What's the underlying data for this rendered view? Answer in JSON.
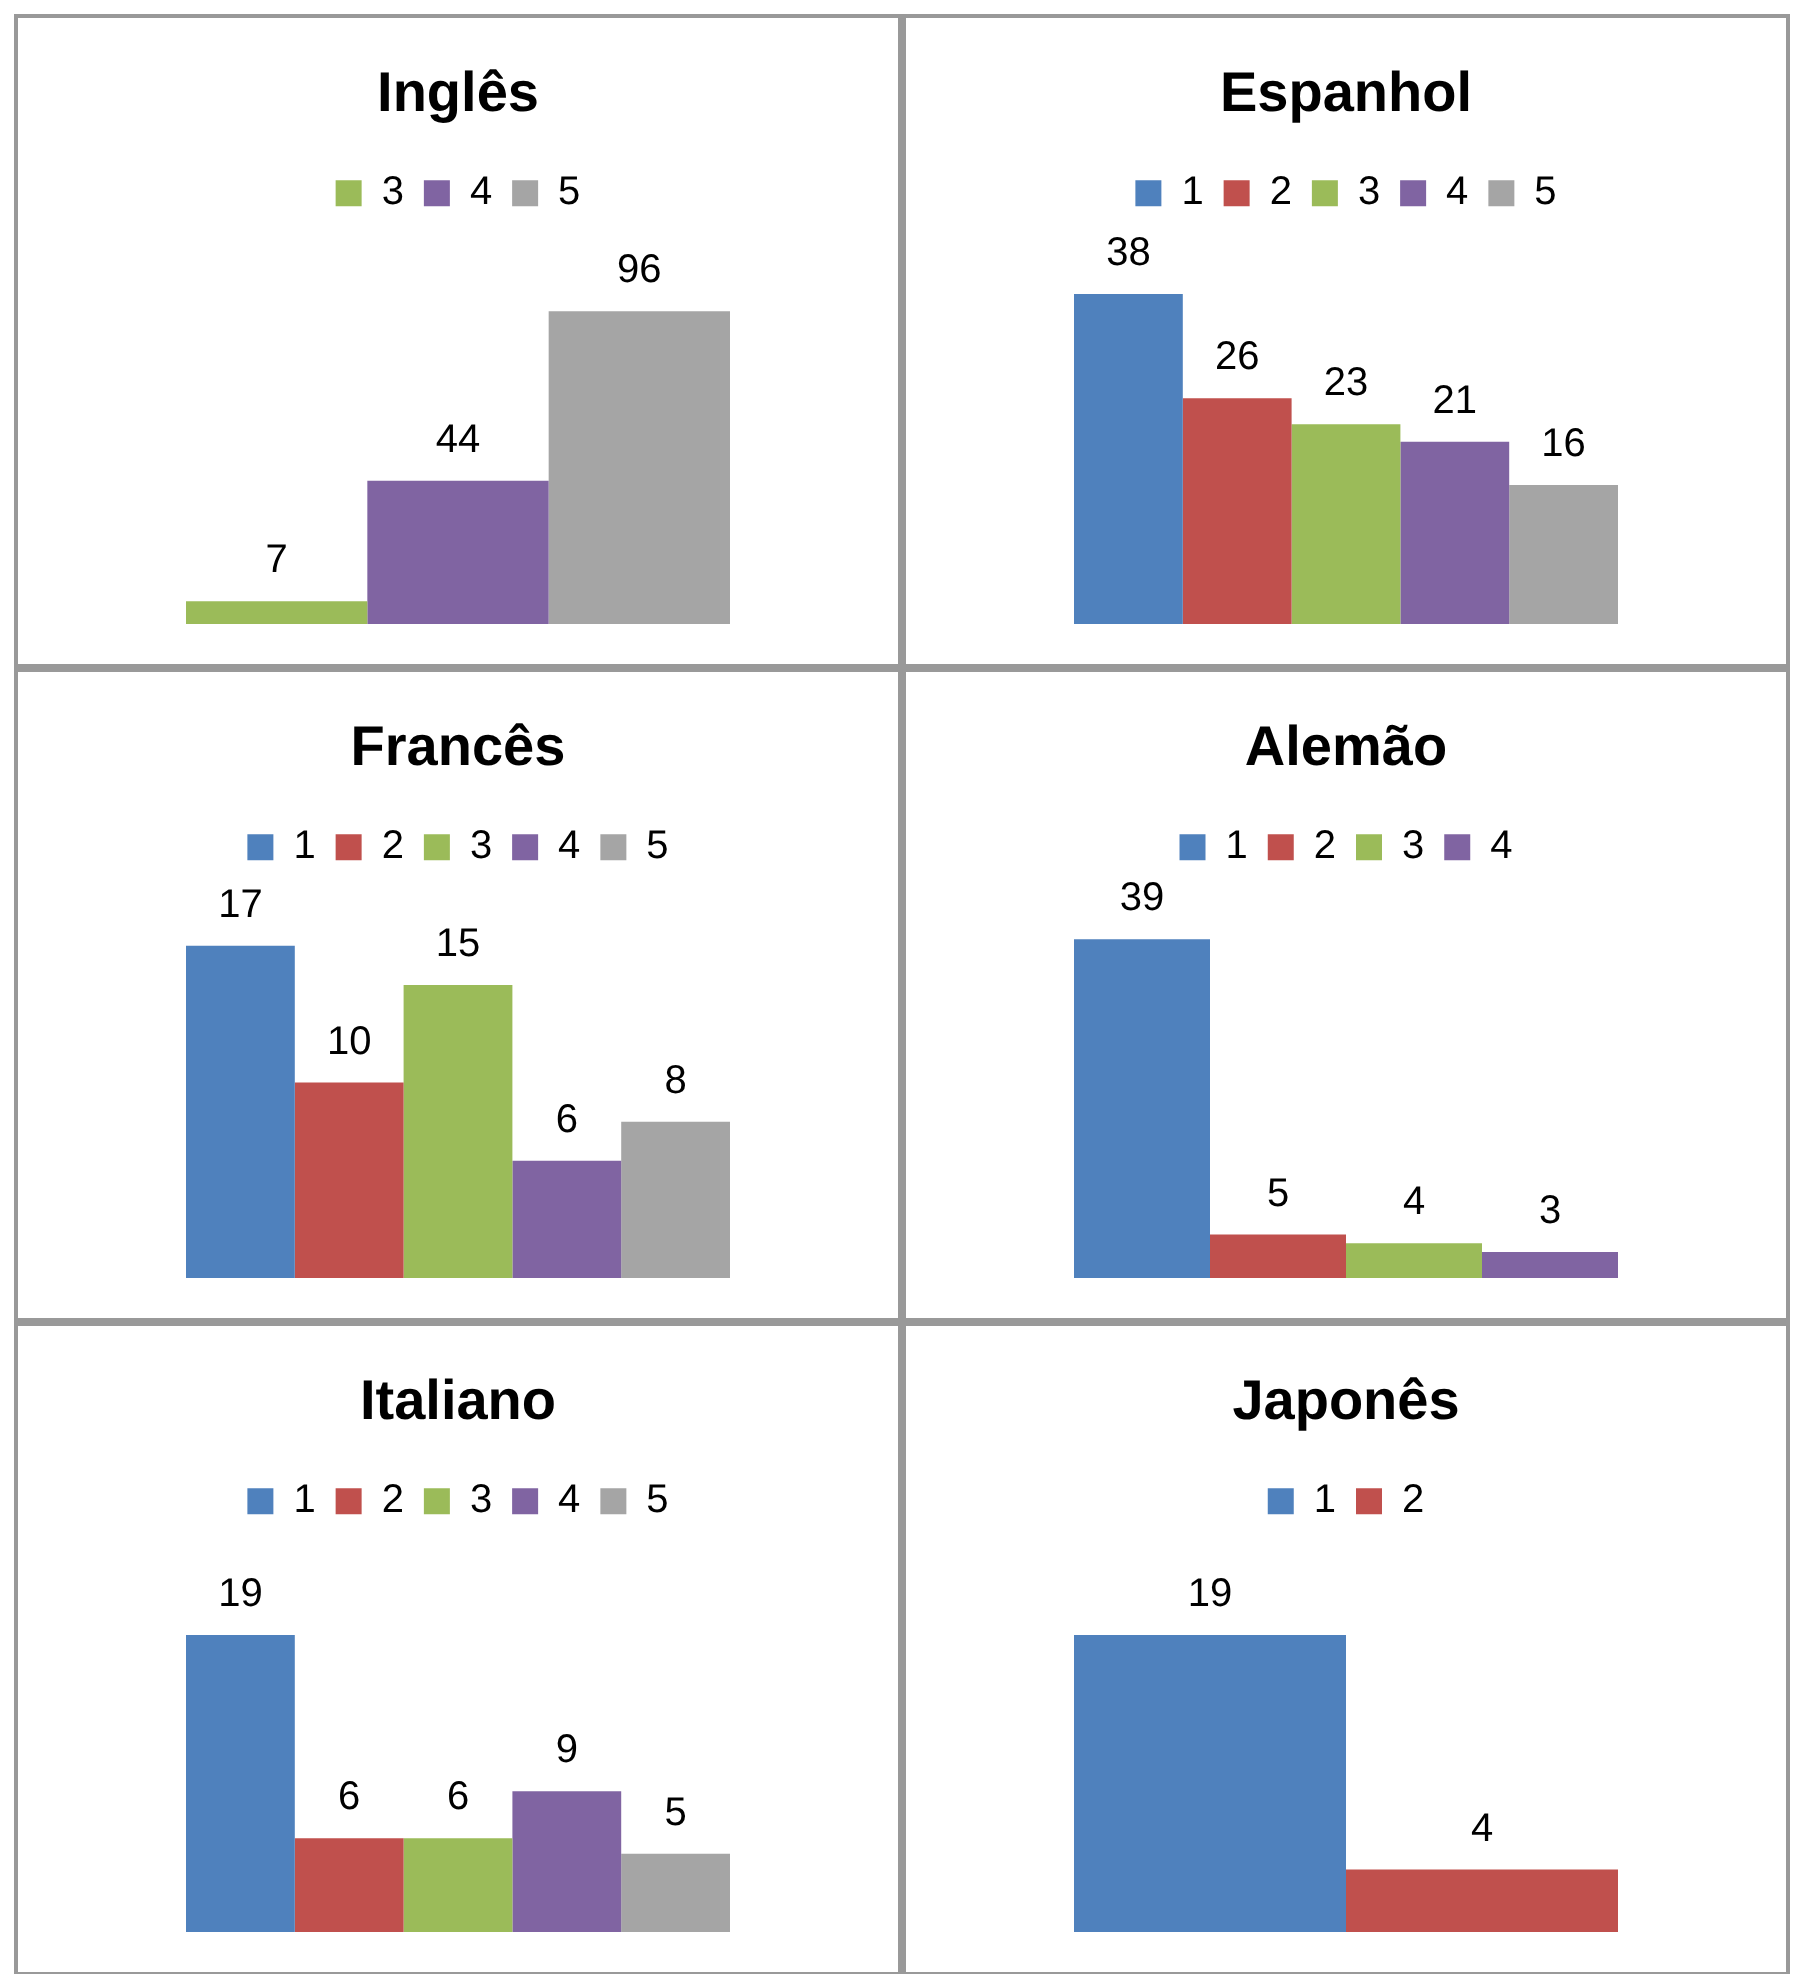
{
  "chart_data": [
    {
      "type": "bar",
      "title": "Inglês",
      "categories": [
        null
      ],
      "series": [
        {
          "name": "3",
          "color": "#9bbb59",
          "values": [
            7
          ]
        },
        {
          "name": "4",
          "color": "#8064a2",
          "values": [
            44
          ]
        },
        {
          "name": "5",
          "color": "#a5a5a5",
          "values": [
            96
          ]
        }
      ],
      "data_labels": true,
      "legend": "top",
      "tick_labels": false
    },
    {
      "type": "bar",
      "title": "Espanhol",
      "categories": [
        null
      ],
      "series": [
        {
          "name": "1",
          "color": "#4f81bd",
          "values": [
            38
          ]
        },
        {
          "name": "2",
          "color": "#c0504d",
          "values": [
            26
          ]
        },
        {
          "name": "3",
          "color": "#9bbb59",
          "values": [
            23
          ]
        },
        {
          "name": "4",
          "color": "#8064a2",
          "values": [
            21
          ]
        },
        {
          "name": "5",
          "color": "#a5a5a5",
          "values": [
            16
          ]
        }
      ],
      "data_labels": true,
      "legend": "top",
      "tick_labels": false
    },
    {
      "type": "bar",
      "title": "Francês",
      "categories": [
        null
      ],
      "series": [
        {
          "name": "1",
          "color": "#4f81bd",
          "values": [
            17
          ]
        },
        {
          "name": "2",
          "color": "#c0504d",
          "values": [
            10
          ]
        },
        {
          "name": "3",
          "color": "#9bbb59",
          "values": [
            15
          ]
        },
        {
          "name": "4",
          "color": "#8064a2",
          "values": [
            6
          ]
        },
        {
          "name": "5",
          "color": "#a5a5a5",
          "values": [
            8
          ]
        }
      ],
      "data_labels": true,
      "legend": "top",
      "tick_labels": false
    },
    {
      "type": "bar",
      "title": "Alemão",
      "categories": [
        null
      ],
      "series": [
        {
          "name": "1",
          "color": "#4f81bd",
          "values": [
            39
          ]
        },
        {
          "name": "2",
          "color": "#c0504d",
          "values": [
            5
          ]
        },
        {
          "name": "3",
          "color": "#9bbb59",
          "values": [
            4
          ]
        },
        {
          "name": "4",
          "color": "#8064a2",
          "values": [
            3
          ]
        }
      ],
      "data_labels": true,
      "legend": "top",
      "tick_labels": false
    },
    {
      "type": "bar",
      "title": "Italiano",
      "categories": [
        null
      ],
      "series": [
        {
          "name": "1",
          "color": "#4f81bd",
          "values": [
            19
          ]
        },
        {
          "name": "2",
          "color": "#c0504d",
          "values": [
            6
          ]
        },
        {
          "name": "3",
          "color": "#9bbb59",
          "values": [
            6
          ]
        },
        {
          "name": "4",
          "color": "#8064a2",
          "values": [
            9
          ]
        },
        {
          "name": "5",
          "color": "#a5a5a5",
          "values": [
            5
          ]
        }
      ],
      "data_labels": true,
      "legend": "top",
      "tick_labels": false
    },
    {
      "type": "bar",
      "title": "Japonês",
      "categories": [
        null
      ],
      "series": [
        {
          "name": "1",
          "color": "#4f81bd",
          "values": [
            19
          ]
        },
        {
          "name": "2",
          "color": "#c0504d",
          "values": [
            4
          ]
        }
      ],
      "data_labels": true,
      "legend": "top",
      "tick_labels": false
    }
  ]
}
